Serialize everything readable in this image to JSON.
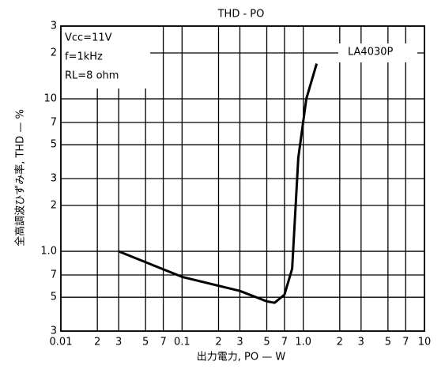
{
  "chart_data": {
    "type": "line",
    "title": "THD - PO",
    "x_label": "出力電力, PO — W",
    "y_label": "全高調波ひずみ率, THD — %",
    "annotations": [
      "Vcc=11V",
      "f=1kHz",
      "RL=8 ohm",
      "LA4030P"
    ],
    "log_x": true,
    "log_y": true,
    "grid": true,
    "xlim": [
      0.01,
      10
    ],
    "ylim": [
      0.3,
      30
    ],
    "xticks": [
      0.01,
      {
        "value": 0.02,
        "label": "2"
      },
      {
        "value": 0.03,
        "label": "3"
      },
      {
        "value": 0.05,
        "label": "5"
      },
      {
        "value": 0.07,
        "label": "7"
      },
      0.1,
      {
        "value": 0.2,
        "label": "2"
      },
      {
        "value": 0.3,
        "label": "3"
      },
      {
        "value": 0.5,
        "label": "5"
      },
      {
        "value": 0.7,
        "label": "7"
      },
      {
        "value": 1,
        "label": "1.0"
      },
      2,
      3,
      5,
      7,
      10
    ],
    "yticks": [
      {
        "value": 0.3,
        "label": "3"
      },
      {
        "value": 0.5,
        "label": "5"
      },
      {
        "value": 0.7,
        "label": "7"
      },
      {
        "value": 1,
        "label": "1.0"
      },
      2,
      3,
      5,
      7,
      10,
      {
        "value": 20,
        "label": "2"
      },
      {
        "value": 30,
        "label": "3"
      }
    ],
    "series": [
      {
        "name": "LA4030P",
        "color": "#000000",
        "x": [
          0.03,
          0.1,
          0.3,
          0.5,
          0.58,
          0.7,
          0.81,
          0.91,
          1.06,
          1.29
        ],
        "values": [
          1.0,
          0.68,
          0.55,
          0.47,
          0.46,
          0.52,
          0.77,
          4.1,
          10,
          17
        ]
      }
    ]
  }
}
